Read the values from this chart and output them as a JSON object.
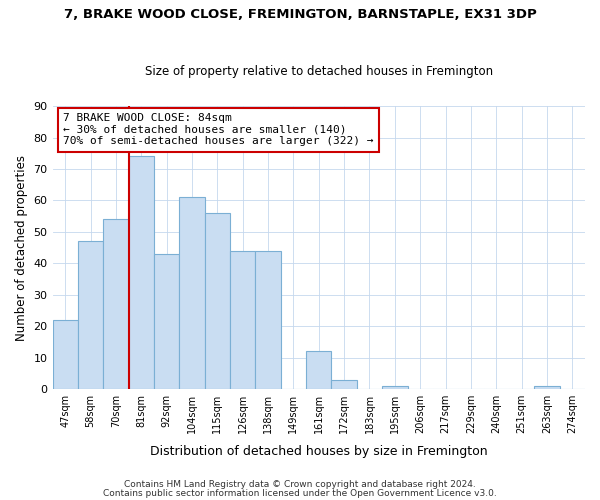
{
  "title": "7, BRAKE WOOD CLOSE, FREMINGTON, BARNSTAPLE, EX31 3DP",
  "subtitle": "Size of property relative to detached houses in Fremington",
  "xlabel": "Distribution of detached houses by size in Fremington",
  "ylabel": "Number of detached properties",
  "bar_labels": [
    "47sqm",
    "58sqm",
    "70sqm",
    "81sqm",
    "92sqm",
    "104sqm",
    "115sqm",
    "126sqm",
    "138sqm",
    "149sqm",
    "161sqm",
    "172sqm",
    "183sqm",
    "195sqm",
    "206sqm",
    "217sqm",
    "229sqm",
    "240sqm",
    "251sqm",
    "263sqm",
    "274sqm"
  ],
  "bar_values": [
    22,
    47,
    54,
    74,
    43,
    61,
    56,
    44,
    44,
    0,
    12,
    3,
    0,
    1,
    0,
    0,
    0,
    0,
    0,
    1,
    0
  ],
  "bar_color": "#c9ddf2",
  "bar_edge_color": "#7bafd4",
  "vline_color": "#cc0000",
  "ylim": [
    0,
    90
  ],
  "yticks": [
    0,
    10,
    20,
    30,
    40,
    50,
    60,
    70,
    80,
    90
  ],
  "annotation_title": "7 BRAKE WOOD CLOSE: 84sqm",
  "annotation_line1": "← 30% of detached houses are smaller (140)",
  "annotation_line2": "70% of semi-detached houses are larger (322) →",
  "annotation_box_facecolor": "white",
  "annotation_box_edgecolor": "#cc0000",
  "footer1": "Contains HM Land Registry data © Crown copyright and database right 2024.",
  "footer2": "Contains public sector information licensed under the Open Government Licence v3.0.",
  "fig_width": 6.0,
  "fig_height": 5.0,
  "dpi": 100
}
